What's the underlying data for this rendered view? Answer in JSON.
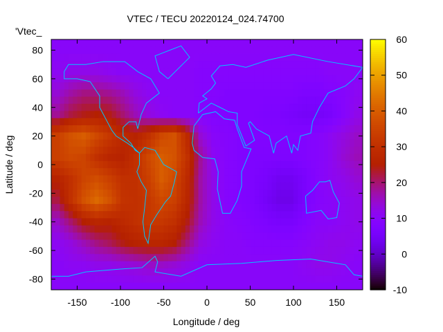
{
  "chart_data": {
    "type": "heatmap",
    "title": "VTEC / TECU 20220124_024.74700",
    "xlabel": "Longitude / deg",
    "ylabel": "Latitude / deg",
    "series_key": "'Vtec_",
    "xlim": [
      -180,
      180
    ],
    "ylim": [
      -87.5,
      87.5
    ],
    "xticks": [
      -150,
      -100,
      -50,
      0,
      50,
      100,
      150
    ],
    "yticks": [
      -80,
      -60,
      -40,
      -20,
      0,
      20,
      40,
      60,
      80
    ],
    "cblim": [
      -10,
      60
    ],
    "cbticks": [
      -10,
      0,
      10,
      20,
      30,
      40,
      50,
      60
    ],
    "grid_lon": [
      -172.5,
      -157.5,
      -142.5,
      -127.5,
      -112.5,
      -97.5,
      -82.5,
      -67.5,
      -52.5,
      -37.5,
      -22.5,
      -7.5,
      7.5,
      22.5,
      37.5,
      52.5,
      67.5,
      82.5,
      97.5,
      112.5,
      127.5,
      142.5,
      157.5,
      172.5
    ],
    "grid_lat": [
      80,
      65,
      50,
      35,
      20,
      5,
      -10,
      -25,
      -40,
      -55,
      -70,
      -85
    ],
    "values": [
      [
        10,
        10,
        10,
        10,
        10,
        10,
        10,
        10,
        10,
        10,
        10,
        10,
        10,
        10,
        10,
        10,
        10,
        10,
        10,
        10,
        10,
        10,
        10,
        10
      ],
      [
        11,
        12,
        12,
        12,
        11,
        10,
        10,
        10,
        10,
        10,
        10,
        9,
        9,
        9,
        9,
        9,
        9,
        9,
        9,
        9,
        9,
        10,
        10,
        10
      ],
      [
        14,
        17,
        19,
        19,
        18,
        16,
        13,
        11,
        10,
        10,
        10,
        9,
        9,
        8,
        8,
        8,
        8,
        8,
        8,
        7,
        7,
        8,
        9,
        11
      ],
      [
        18,
        22,
        24,
        25,
        24,
        20,
        16,
        13,
        11,
        10,
        10,
        9,
        8,
        8,
        8,
        8,
        7,
        7,
        6,
        5,
        5,
        6,
        9,
        12
      ],
      [
        34,
        38,
        40,
        36,
        32,
        28,
        26,
        30,
        36,
        38,
        28,
        14,
        10,
        9,
        8,
        8,
        8,
        8,
        8,
        8,
        9,
        11,
        13,
        15
      ],
      [
        34,
        36,
        35,
        30,
        27,
        26,
        30,
        36,
        40,
        38,
        30,
        18,
        11,
        9,
        8,
        7,
        7,
        7,
        7,
        8,
        9,
        11,
        14,
        16
      ],
      [
        26,
        30,
        35,
        37,
        34,
        30,
        30,
        34,
        40,
        36,
        28,
        17,
        12,
        9,
        8,
        7,
        6,
        4,
        4,
        6,
        9,
        11,
        12,
        14
      ],
      [
        22,
        30,
        38,
        42,
        38,
        31,
        30,
        32,
        36,
        34,
        27,
        17,
        12,
        9,
        8,
        7,
        5,
        3,
        3,
        6,
        9,
        10,
        11,
        12
      ],
      [
        15,
        20,
        25,
        27,
        26,
        28,
        30,
        32,
        32,
        30,
        24,
        16,
        12,
        10,
        9,
        8,
        7,
        6,
        6,
        8,
        10,
        10,
        11,
        12
      ],
      [
        11,
        13,
        16,
        19,
        21,
        24,
        26,
        27,
        27,
        25,
        19,
        13,
        11,
        10,
        10,
        9,
        9,
        9,
        9,
        10,
        11,
        12,
        12,
        11
      ],
      [
        10,
        11,
        11,
        12,
        12,
        13,
        14,
        15,
        15,
        14,
        12,
        10,
        10,
        10,
        10,
        10,
        10,
        10,
        10,
        11,
        12,
        12,
        11,
        10
      ],
      [
        10,
        10,
        10,
        10,
        10,
        10,
        10,
        10,
        10,
        10,
        10,
        10,
        10,
        10,
        10,
        10,
        10,
        10,
        10,
        10,
        10,
        10,
        10,
        10
      ]
    ]
  },
  "colors": {
    "coastline": "#00c8ff"
  }
}
